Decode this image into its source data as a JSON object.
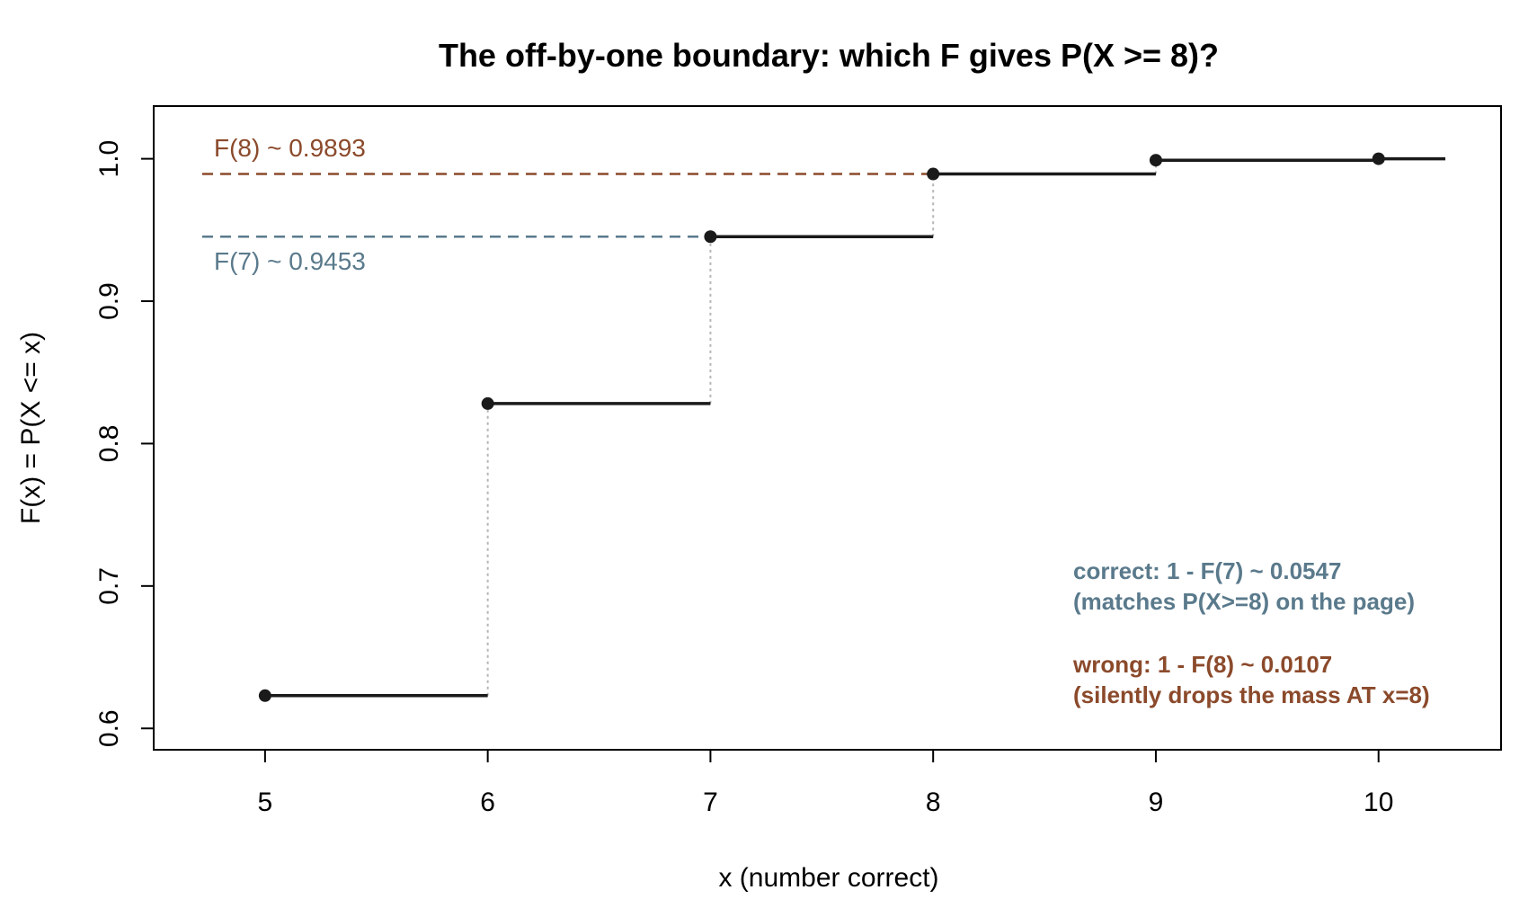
{
  "chart_data": {
    "type": "line",
    "step": true,
    "title": "The off-by-one boundary: which F gives P(X >= 8)?",
    "xlabel": "x (number correct)",
    "ylabel": "F(x) = P(X <= x)",
    "xlim": [
      4.5,
      10.55
    ],
    "ylim": [
      0.585,
      1.037
    ],
    "x_ticks": [
      5,
      6,
      7,
      8,
      9,
      10
    ],
    "y_ticks": [
      0.6,
      0.7,
      0.8,
      0.9,
      1.0
    ],
    "x_tick_labels": [
      "5",
      "6",
      "7",
      "8",
      "9",
      "10"
    ],
    "y_tick_labels": [
      "0.6",
      "0.7",
      "0.8",
      "0.9",
      "1.0"
    ],
    "x": [
      5,
      6,
      7,
      8,
      9,
      10
    ],
    "y": [
      0.623,
      0.8281,
      0.9453,
      0.9893,
      0.999,
      1.0
    ],
    "line_color": "#1a1a1a",
    "reference_lines": [
      {
        "label": "F(8) ~ 0.9893",
        "value": 0.9893,
        "x_end": 8,
        "color": "#8b4a2b"
      },
      {
        "label": "F(7) ~ 0.9453",
        "value": 0.9453,
        "x_end": 7,
        "color": "#5a7a8c"
      }
    ],
    "annotations": {
      "correct": {
        "line1": "correct: 1 - F(7) ~ 0.0547",
        "line2": "(matches P(X>=8) on the page)",
        "color": "#5a7a8c"
      },
      "wrong": {
        "line1": "wrong: 1 - F(8) ~ 0.0107",
        "line2": "(silently drops the mass AT x=8)",
        "color": "#8b4a2b"
      }
    }
  }
}
